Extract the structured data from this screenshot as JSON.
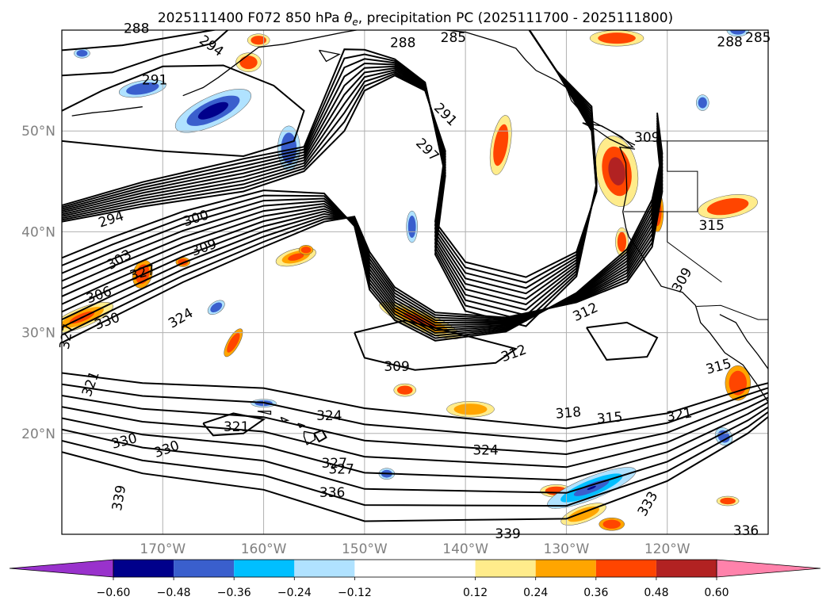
{
  "chart_data": {
    "type": "contour-map",
    "title_parts": {
      "prefix": "2025111400 F072 850 hPa ",
      "symbol": "θ",
      "subscript": "e",
      "suffix": ", precipitation PC (2025111700 - 2025111800)"
    },
    "field_contours": "850 hPa equivalent potential temperature (K), 3 K interval",
    "shaded_field": "precipitation PC",
    "lon_range": [
      -180,
      -110
    ],
    "lat_range": [
      10,
      60
    ],
    "x_ticks": [
      {
        "lon": -170,
        "label": "170°W"
      },
      {
        "lon": -160,
        "label": "160°W"
      },
      {
        "lon": -150,
        "label": "150°W"
      },
      {
        "lon": -140,
        "label": "140°W"
      },
      {
        "lon": -130,
        "label": "130°W"
      },
      {
        "lon": -120,
        "label": "120°W"
      }
    ],
    "y_ticks": [
      {
        "lat": 20,
        "label": "20°N"
      },
      {
        "lat": 30,
        "label": "30°N"
      },
      {
        "lat": 40,
        "label": "40°N"
      },
      {
        "lat": 50,
        "label": "50°N"
      }
    ],
    "grid": true,
    "contour_labels": [
      {
        "text": "288",
        "lon": -172.6,
        "lat": 60.1,
        "angle": 0
      },
      {
        "text": "294",
        "lon": -165.2,
        "lat": 58.4,
        "angle": 35
      },
      {
        "text": "291",
        "lon": -170.8,
        "lat": 55.0,
        "angle": 0
      },
      {
        "text": "288",
        "lon": -146.2,
        "lat": 58.7,
        "angle": 0
      },
      {
        "text": "285",
        "lon": -141.2,
        "lat": 59.2,
        "angle": 0
      },
      {
        "text": "288",
        "lon": -113.8,
        "lat": 58.8,
        "angle": 0
      },
      {
        "text": "285",
        "lon": -111.0,
        "lat": 59.2,
        "angle": 0
      },
      {
        "text": "291",
        "lon": -142.0,
        "lat": 51.6,
        "angle": 45
      },
      {
        "text": "297",
        "lon": -143.8,
        "lat": 48.1,
        "angle": 45
      },
      {
        "text": "309",
        "lon": -122.0,
        "lat": 49.3,
        "angle": 0
      },
      {
        "text": "294",
        "lon": -175.1,
        "lat": 41.2,
        "angle": -18
      },
      {
        "text": "300",
        "lon": -166.7,
        "lat": 41.3,
        "angle": -18
      },
      {
        "text": "303",
        "lon": -174.3,
        "lat": 37.2,
        "angle": -30
      },
      {
        "text": "309",
        "lon": -165.9,
        "lat": 38.4,
        "angle": -20
      },
      {
        "text": "327",
        "lon": -172.0,
        "lat": 35.9,
        "angle": -15
      },
      {
        "text": "306",
        "lon": -176.3,
        "lat": 33.7,
        "angle": -20
      },
      {
        "text": "330",
        "lon": -175.5,
        "lat": 31.1,
        "angle": -20
      },
      {
        "text": "324",
        "lon": -168.2,
        "lat": 31.4,
        "angle": -30
      },
      {
        "text": "327",
        "lon": -179.5,
        "lat": 29.6,
        "angle": -80
      },
      {
        "text": "315",
        "lon": -115.6,
        "lat": 40.6,
        "angle": 0
      },
      {
        "text": "309",
        "lon": -118.5,
        "lat": 35.2,
        "angle": -60
      },
      {
        "text": "312",
        "lon": -128.1,
        "lat": 32.0,
        "angle": -25
      },
      {
        "text": "312",
        "lon": -135.2,
        "lat": 27.9,
        "angle": -20
      },
      {
        "text": "309",
        "lon": -146.8,
        "lat": 26.6,
        "angle": 0
      },
      {
        "text": "315",
        "lon": -114.9,
        "lat": 26.6,
        "angle": -15
      },
      {
        "text": "321",
        "lon": -177.1,
        "lat": 24.9,
        "angle": -70
      },
      {
        "text": "318",
        "lon": -129.8,
        "lat": 22.0,
        "angle": -5
      },
      {
        "text": "315",
        "lon": -125.7,
        "lat": 21.5,
        "angle": -5
      },
      {
        "text": "321",
        "lon": -118.8,
        "lat": 21.8,
        "angle": -10
      },
      {
        "text": "324",
        "lon": -153.5,
        "lat": 21.7,
        "angle": 0
      },
      {
        "text": "321",
        "lon": -162.7,
        "lat": 20.6,
        "angle": 0
      },
      {
        "text": "330",
        "lon": -173.8,
        "lat": 19.2,
        "angle": -15
      },
      {
        "text": "330",
        "lon": -169.6,
        "lat": 18.4,
        "angle": -20
      },
      {
        "text": "327",
        "lon": -153.0,
        "lat": 17.0,
        "angle": 0
      },
      {
        "text": "327",
        "lon": -152.3,
        "lat": 16.4,
        "angle": 0
      },
      {
        "text": "324",
        "lon": -138.0,
        "lat": 18.3,
        "angle": 0
      },
      {
        "text": "336",
        "lon": -153.2,
        "lat": 14.1,
        "angle": 0
      },
      {
        "text": "333",
        "lon": -121.9,
        "lat": 13.0,
        "angle": -60
      },
      {
        "text": "339",
        "lon": -174.3,
        "lat": 13.6,
        "angle": -80
      },
      {
        "text": "339",
        "lon": -135.8,
        "lat": 10.0,
        "angle": 0
      },
      {
        "text": "336",
        "lon": -112.2,
        "lat": 10.3,
        "angle": 0
      }
    ],
    "colorbar": {
      "levels": [
        -0.72,
        -0.6,
        -0.48,
        -0.36,
        -0.24,
        -0.12,
        0.12,
        0.24,
        0.36,
        0.48,
        0.6,
        0.72
      ],
      "tick_labels": [
        "−0.60",
        "−0.48",
        "−0.36",
        "−0.24",
        "−0.12",
        "0.12",
        "0.24",
        "0.36",
        "0.48",
        "0.60"
      ],
      "colors": [
        "#9932cc",
        "#00008b",
        "#3a5fcd",
        "#00bfff",
        "#b0e2ff",
        "#ffffff",
        "#ffec8b",
        "#ffa500",
        "#ff4500",
        "#b22222",
        "#ff82ab"
      ],
      "extend": "both"
    }
  }
}
